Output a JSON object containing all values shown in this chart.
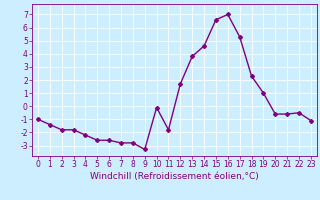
{
  "x": [
    0,
    1,
    2,
    3,
    4,
    5,
    6,
    7,
    8,
    9,
    10,
    11,
    12,
    13,
    14,
    15,
    16,
    17,
    18,
    19,
    20,
    21,
    22,
    23
  ],
  "y": [
    -1.0,
    -1.4,
    -1.8,
    -1.8,
    -2.2,
    -2.6,
    -2.6,
    -2.8,
    -2.8,
    -3.3,
    -0.1,
    -1.8,
    1.7,
    3.8,
    4.6,
    6.6,
    7.0,
    5.3,
    2.3,
    1.0,
    -0.6,
    -0.6,
    -0.5,
    -1.1
  ],
  "line_color": "#800080",
  "marker": "D",
  "marker_size": 2,
  "xlabel": "Windchill (Refroidissement éolien,°C)",
  "xlabel_fontsize": 6.5,
  "xlim": [
    -0.5,
    23.5
  ],
  "ylim": [
    -3.8,
    7.8
  ],
  "yticks": [
    -3,
    -2,
    -1,
    0,
    1,
    2,
    3,
    4,
    5,
    6,
    7
  ],
  "xticks": [
    0,
    1,
    2,
    3,
    4,
    5,
    6,
    7,
    8,
    9,
    10,
    11,
    12,
    13,
    14,
    15,
    16,
    17,
    18,
    19,
    20,
    21,
    22,
    23
  ],
  "background_color": "#cceeff",
  "grid_color": "#ffffff",
  "tick_fontsize": 5.5,
  "line_width": 1.0
}
